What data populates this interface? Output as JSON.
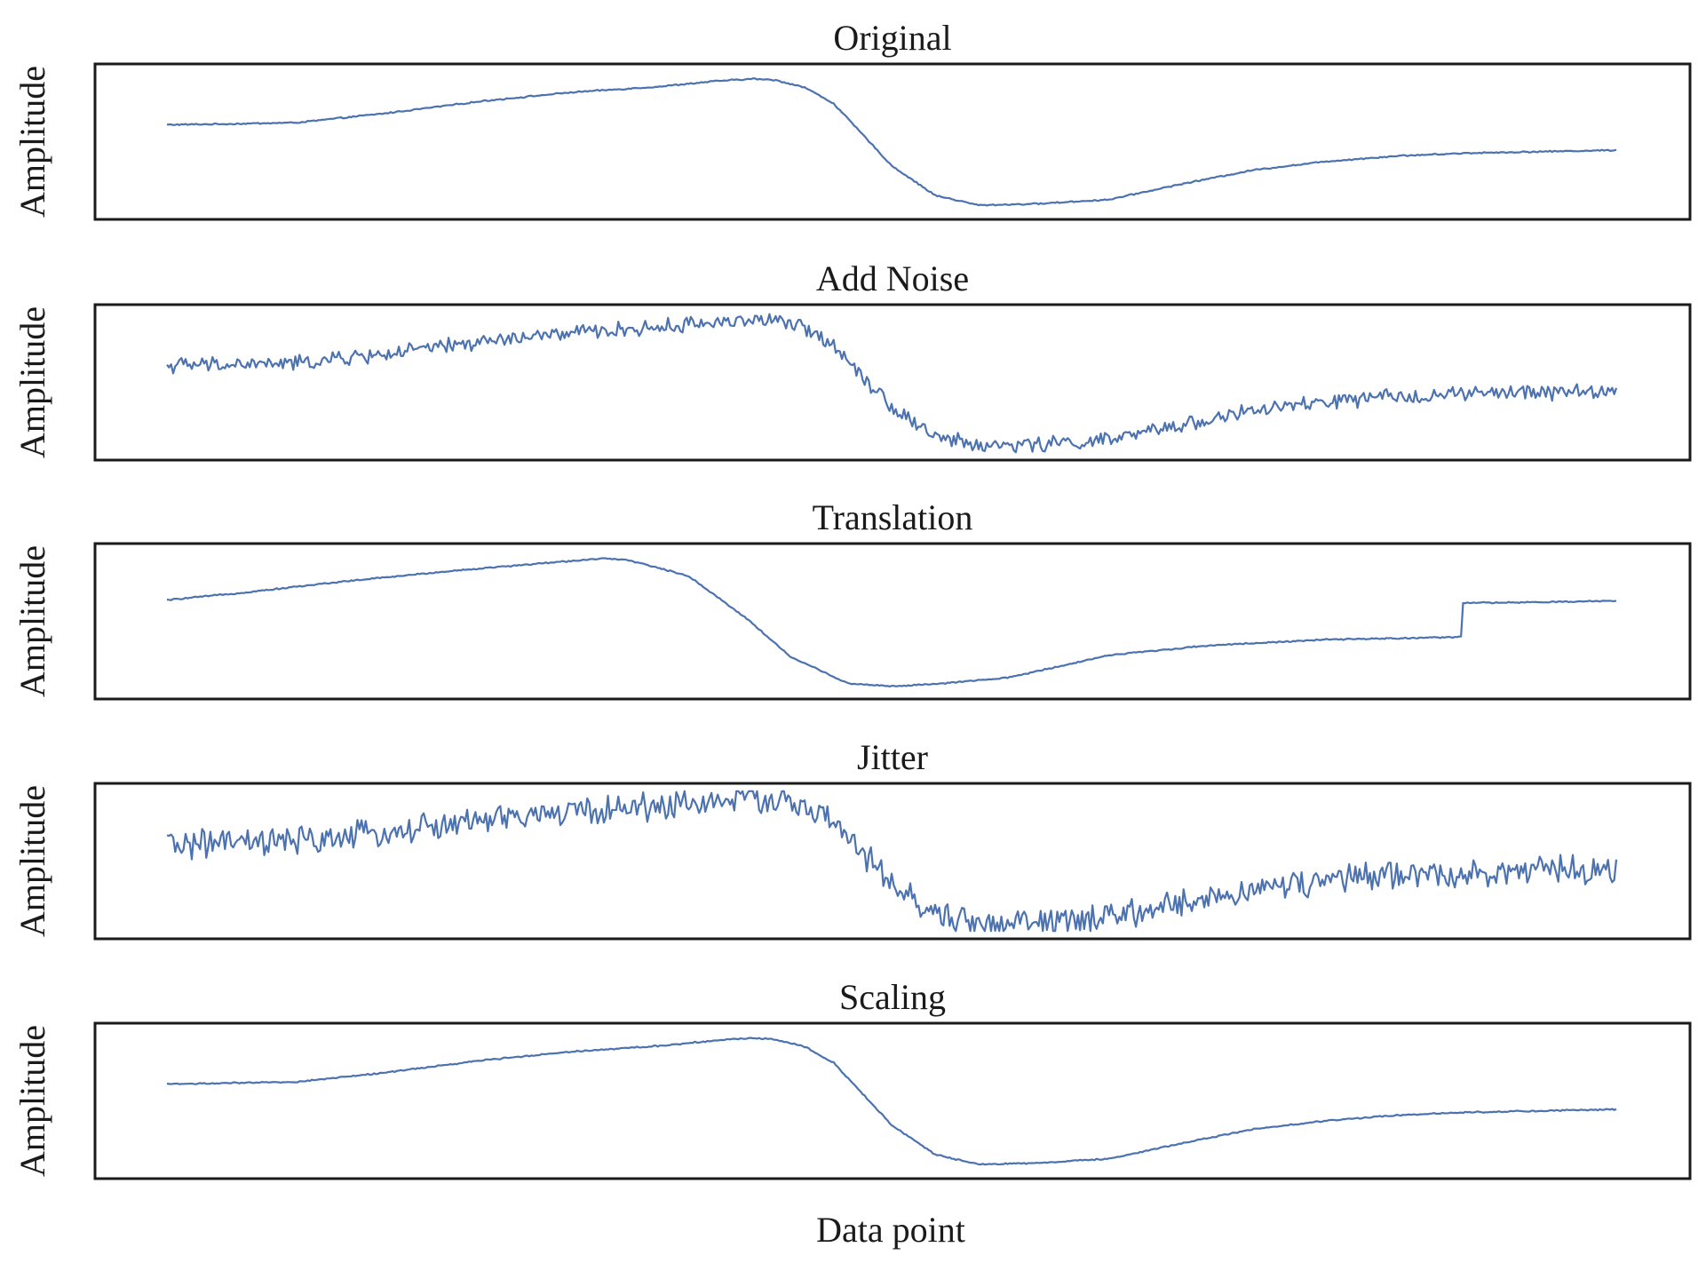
{
  "figure": {
    "xlabel": "Data point",
    "colors": {
      "line": "#4c72b0",
      "frame": "#1a1a1a",
      "background": "#ffffff"
    }
  },
  "chart_data": [
    {
      "type": "line",
      "title": "Original",
      "xlabel": "",
      "ylabel": "Amplitude",
      "grid": false,
      "x_ticks": false,
      "y_ticks": false,
      "xlim": [
        0,
        1
      ],
      "ylim": [
        0,
        1
      ],
      "noise": 0.004,
      "series": [
        {
          "x": [
            0,
            0.04,
            0.09,
            0.15,
            0.22,
            0.28,
            0.34,
            0.38,
            0.405,
            0.42,
            0.44,
            0.46,
            0.48,
            0.5,
            0.53,
            0.56,
            0.6,
            0.65,
            0.7,
            0.75,
            0.8,
            0.85,
            0.9,
            0.95,
            1.0
          ],
          "y": [
            0.62,
            0.625,
            0.635,
            0.7,
            0.79,
            0.85,
            0.89,
            0.93,
            0.945,
            0.935,
            0.885,
            0.77,
            0.55,
            0.33,
            0.12,
            0.05,
            0.06,
            0.09,
            0.2,
            0.3,
            0.36,
            0.4,
            0.42,
            0.43,
            0.44
          ]
        }
      ]
    },
    {
      "type": "line",
      "title": "Add Noise",
      "xlabel": "",
      "ylabel": "Amplitude",
      "grid": false,
      "x_ticks": false,
      "y_ticks": false,
      "xlim": [
        0,
        1
      ],
      "ylim": [
        0,
        1
      ],
      "noise": 0.045,
      "series": [
        {
          "x": [
            0,
            0.04,
            0.09,
            0.15,
            0.22,
            0.28,
            0.34,
            0.38,
            0.405,
            0.42,
            0.44,
            0.46,
            0.48,
            0.5,
            0.53,
            0.56,
            0.6,
            0.65,
            0.7,
            0.75,
            0.8,
            0.85,
            0.9,
            0.95,
            1.0
          ],
          "y": [
            0.62,
            0.625,
            0.635,
            0.7,
            0.79,
            0.85,
            0.89,
            0.93,
            0.945,
            0.935,
            0.885,
            0.77,
            0.55,
            0.33,
            0.12,
            0.05,
            0.06,
            0.09,
            0.2,
            0.3,
            0.36,
            0.4,
            0.42,
            0.43,
            0.44
          ]
        }
      ]
    },
    {
      "type": "line",
      "title": "Translation",
      "xlabel": "",
      "ylabel": "Amplitude",
      "grid": false,
      "x_ticks": false,
      "y_ticks": false,
      "xlim": [
        0,
        1
      ],
      "ylim": [
        0,
        1
      ],
      "noise": 0.004,
      "series": [
        {
          "x": [
            0,
            0.05,
            0.12,
            0.2,
            0.27,
            0.3,
            0.32,
            0.36,
            0.4,
            0.43,
            0.47,
            0.5,
            0.53,
            0.58,
            0.65,
            0.72,
            0.8,
            0.85,
            0.88,
            0.893,
            0.894,
            0.95,
            1.0
          ],
          "y": [
            0.65,
            0.7,
            0.78,
            0.86,
            0.92,
            0.945,
            0.93,
            0.82,
            0.52,
            0.25,
            0.06,
            0.04,
            0.055,
            0.1,
            0.26,
            0.33,
            0.37,
            0.38,
            0.385,
            0.39,
            0.63,
            0.635,
            0.645
          ]
        }
      ]
    },
    {
      "type": "line",
      "title": "Jitter",
      "xlabel": "",
      "ylabel": "Amplitude",
      "grid": false,
      "x_ticks": false,
      "y_ticks": false,
      "xlim": [
        0,
        1
      ],
      "ylim": [
        0,
        1
      ],
      "noise": 0.085,
      "series": [
        {
          "x": [
            0,
            0.04,
            0.09,
            0.15,
            0.22,
            0.28,
            0.34,
            0.38,
            0.405,
            0.42,
            0.44,
            0.46,
            0.48,
            0.5,
            0.53,
            0.56,
            0.6,
            0.65,
            0.7,
            0.75,
            0.8,
            0.85,
            0.9,
            0.95,
            1.0
          ],
          "y": [
            0.62,
            0.625,
            0.635,
            0.7,
            0.79,
            0.85,
            0.89,
            0.93,
            0.945,
            0.935,
            0.885,
            0.77,
            0.55,
            0.33,
            0.12,
            0.05,
            0.06,
            0.09,
            0.2,
            0.3,
            0.36,
            0.4,
            0.42,
            0.43,
            0.44
          ]
        }
      ]
    },
    {
      "type": "line",
      "title": "Scaling",
      "xlabel": "",
      "ylabel": "Amplitude",
      "grid": false,
      "x_ticks": false,
      "y_ticks": false,
      "xlim": [
        0,
        1
      ],
      "ylim": [
        0,
        1
      ],
      "noise": 0.004,
      "series": [
        {
          "x": [
            0,
            0.04,
            0.09,
            0.15,
            0.22,
            0.28,
            0.34,
            0.38,
            0.405,
            0.42,
            0.44,
            0.46,
            0.48,
            0.5,
            0.53,
            0.56,
            0.6,
            0.65,
            0.7,
            0.75,
            0.8,
            0.85,
            0.9,
            0.95,
            1.0
          ],
          "y": [
            0.62,
            0.625,
            0.635,
            0.7,
            0.79,
            0.85,
            0.89,
            0.93,
            0.945,
            0.935,
            0.885,
            0.77,
            0.55,
            0.33,
            0.12,
            0.05,
            0.06,
            0.09,
            0.2,
            0.3,
            0.36,
            0.4,
            0.42,
            0.43,
            0.44
          ]
        }
      ]
    }
  ]
}
